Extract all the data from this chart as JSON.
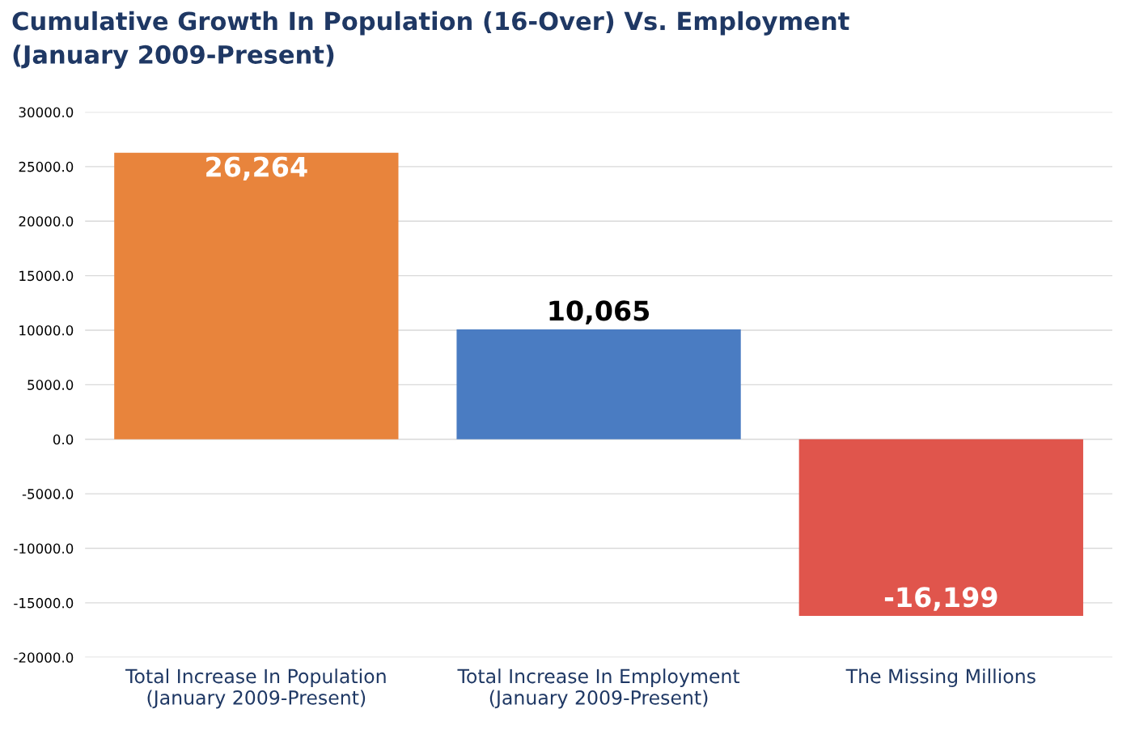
{
  "chart_data": {
    "type": "bar",
    "title": "Cumulative Growth In Population (16-Over) Vs. Employment\n(January 2009-Present)",
    "categories": [
      "Total Increase In Population\n(January 2009-Present)",
      "Total Increase In Employment\n(January 2009-Present)",
      "The Missing Millions"
    ],
    "values": [
      26264,
      10065,
      -16199
    ],
    "value_labels": [
      "26,264",
      "10,065",
      "-16,199"
    ],
    "colors": [
      "#e8843c",
      "#4a7cc2",
      "#e0554c"
    ],
    "ylim": [
      -20000,
      30000
    ],
    "yticks": [
      {
        "value": -20000,
        "label": "-20000.0"
      },
      {
        "value": -15000,
        "label": "-15000.0"
      },
      {
        "value": -10000,
        "label": "-10000.0"
      },
      {
        "value": -5000,
        "label": "-5000.0"
      },
      {
        "value": 0,
        "label": "0.0"
      },
      {
        "value": 5000,
        "label": "5000.0"
      },
      {
        "value": 10000,
        "label": "10000.0"
      },
      {
        "value": 15000,
        "label": "15000.0"
      },
      {
        "value": 20000,
        "label": "20000.0"
      },
      {
        "value": 25000,
        "label": "25000.0"
      },
      {
        "value": 30000,
        "label": "30000.0"
      }
    ],
    "grid": "y",
    "legend": false
  }
}
